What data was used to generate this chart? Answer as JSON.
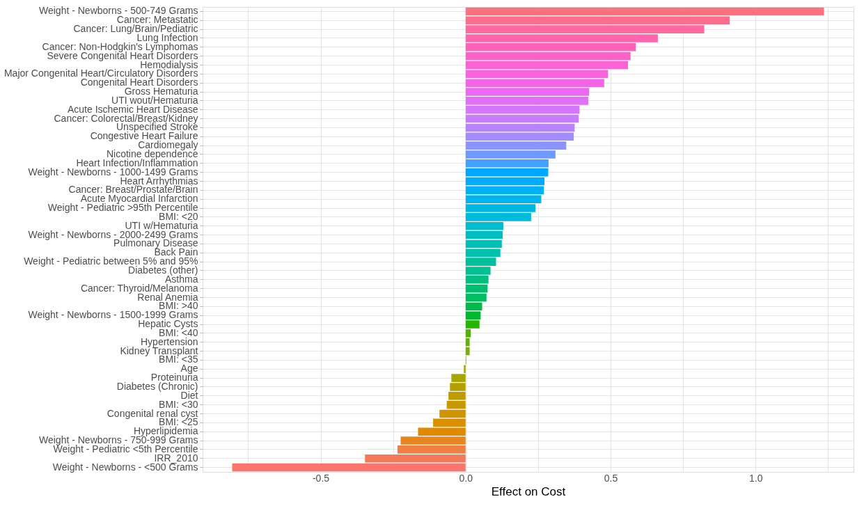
{
  "chart_data": {
    "type": "bar",
    "orientation": "horizontal",
    "xlabel": "Effect on Cost",
    "categories": [
      "Weight - Newborns - 500-749 Grams",
      "Cancer: Metastatic",
      "Cancer: Lung/Brain/Pediatric",
      "Lung Infection",
      "Cancer: Non-Hodgkin's Lymphomas",
      "Severe Congenital Heart Disorders",
      "Hemodialysis",
      "Major Congenital Heart/Circulatory Disorders",
      "Congenital Heart Disorders",
      "Gross Hematuria",
      "UTI wout/Hematuria",
      "Acute Ischemic Heart Disease",
      "Cancer: Colorectal/Breast/Kidney",
      "Unspecified Stroke",
      "Congestive Heart Failure",
      "Cardiomegaly",
      "Nicotine dependence",
      "Heart Infection/Inflammation",
      "Weight - Newborns - 1000-1499 Grams",
      "Heart Arrhythmias",
      "Cancer: Breast/Prostate/Brain",
      "Acute Myocardial Infarction",
      "Weight - Pediatric >95th Percentile",
      "BMI: <20",
      "UTI w/Hematuria",
      "Weight - Newborns - 2000-2499 Grams",
      "Pulmonary Disease",
      "Back Pain",
      "Weight - Pediatric between 5% and 95%",
      "Diabetes (other)",
      "Asthma",
      "Cancer: Thyroid/Melanoma",
      "Renal Anemia",
      "BMI: >40",
      "Weight - Newborns - 1500-1999 Grams",
      "Hepatic Cysts",
      "BMI: <40",
      "Hypertension",
      "Kidney Transplant",
      "BMI: <35",
      "Age",
      "Proteinuria",
      "Diabetes (Chronic)",
      "Diet",
      "BMI: <30",
      "Congenital renal cyst",
      "BMI: <25",
      "Hyperlipidemia",
      "Weight - Newborns - 750-999 Grams",
      "Weight - Pediatric <5th Percentile",
      "IRR_2010",
      "Weight - Newborns - <500 Grams"
    ],
    "values": [
      1.236,
      0.911,
      0.823,
      0.663,
      0.587,
      0.569,
      0.56,
      0.491,
      0.478,
      0.426,
      0.423,
      0.393,
      0.39,
      0.376,
      0.373,
      0.347,
      0.31,
      0.286,
      0.285,
      0.272,
      0.27,
      0.261,
      0.241,
      0.226,
      0.13,
      0.128,
      0.125,
      0.12,
      0.105,
      0.086,
      0.079,
      0.076,
      0.072,
      0.057,
      0.052,
      0.048,
      0.018,
      0.014,
      0.014,
      0.002,
      -0.006,
      -0.049,
      -0.054,
      -0.059,
      -0.065,
      -0.09,
      -0.112,
      -0.164,
      -0.224,
      -0.235,
      -0.347,
      -0.805
    ],
    "colors": [
      "#fc717e",
      "#ff6d8e",
      "#ff699d",
      "#ff65ac",
      "#ff63b9",
      "#ff61c6",
      "#fd61d2",
      "#f962dd",
      "#f365e7",
      "#eb69f0",
      "#e16ff7",
      "#d575fe",
      "#c77cff",
      "#b684ff",
      "#a28bff",
      "#8b93ff",
      "#6d9aff",
      "#42a0ff",
      "#00a7ff",
      "#00acfc",
      "#00b1f5",
      "#00b5ed",
      "#00b8e4",
      "#00bbda",
      "#00bdd0",
      "#00bfc4",
      "#00c0b8",
      "#00c1ab",
      "#00c19e",
      "#00c090",
      "#00bf80",
      "#00be70",
      "#00bd5e",
      "#00bb49",
      "#00b92e",
      "#24b700",
      "#4fb400",
      "#68b100",
      "#7cae00",
      "#8cab00",
      "#9ba800",
      "#a8a400",
      "#b4a000",
      "#be9c00",
      "#c89800",
      "#d19300",
      "#d98f00",
      "#e18a00",
      "#e88521",
      "#ee8043",
      "#f37b5a",
      "#f8766d"
    ],
    "xlim": [
      -0.907,
      1.338
    ],
    "xticks": [
      {
        "value": -0.75,
        "label": null
      },
      {
        "value": -0.5,
        "label": "-0.5"
      },
      {
        "value": -0.25,
        "label": null
      },
      {
        "value": 0,
        "label": "0.0"
      },
      {
        "value": 0.25,
        "label": null
      },
      {
        "value": 0.5,
        "label": "0.5"
      },
      {
        "value": 0.75,
        "label": null
      },
      {
        "value": 1,
        "label": "1.0"
      },
      {
        "value": 1.25,
        "label": null
      }
    ],
    "grid": true
  }
}
